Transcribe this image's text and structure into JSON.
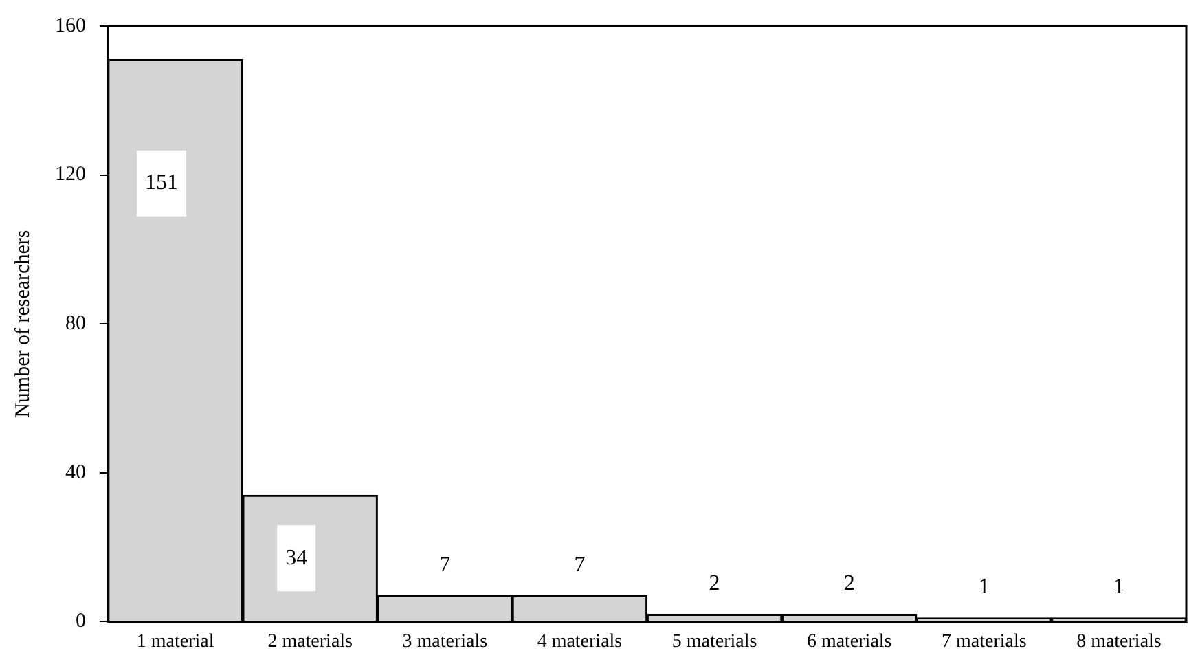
{
  "chart_data": {
    "type": "bar",
    "ylabel": "Number of researchers",
    "categories": [
      "1 material",
      "2 materials",
      "3 materials",
      "4 materials",
      "5 materials",
      "6 materials",
      "7 materials",
      "8 materials"
    ],
    "values": [
      151,
      34,
      7,
      7,
      2,
      2,
      1,
      1
    ],
    "color": "#d4d4d4",
    "ylim": [
      0,
      160
    ],
    "yticks": [
      0,
      40,
      80,
      120,
      160
    ],
    "grid": false,
    "data_labels": true
  }
}
